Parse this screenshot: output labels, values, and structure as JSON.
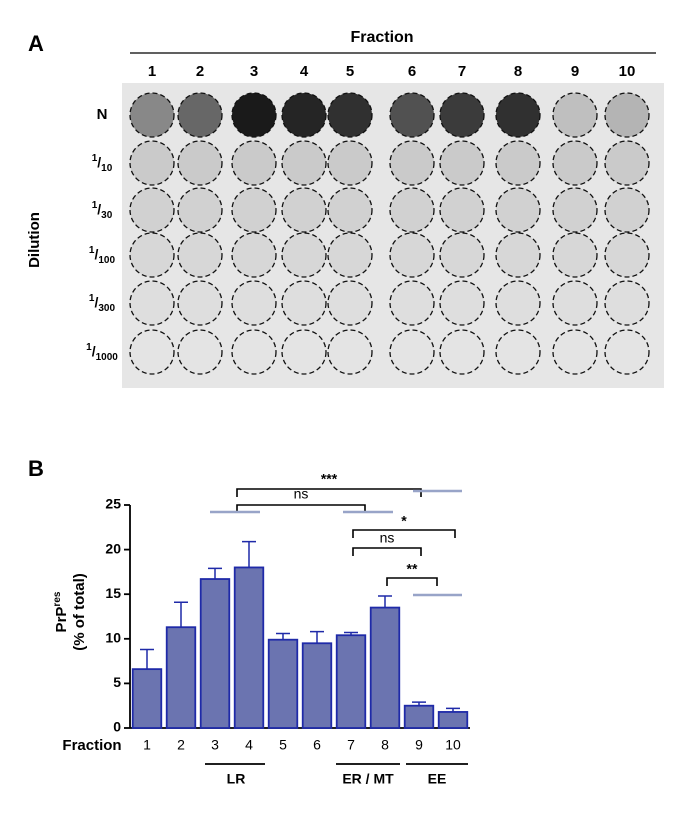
{
  "panel_a": {
    "label": "A",
    "title": "Fraction",
    "columns": [
      "1",
      "2",
      "3",
      "4",
      "5",
      "6",
      "7",
      "8",
      "9",
      "10"
    ],
    "row_axis": "Dilution",
    "slash": "/",
    "rows": [
      "N",
      {
        "sup": "1",
        "sub": "10"
      },
      {
        "sup": "1",
        "sub": "30"
      },
      {
        "sup": "1",
        "sub": "100"
      },
      {
        "sup": "1",
        "sub": "300"
      },
      {
        "sup": "1",
        "sub": "1000"
      }
    ]
  },
  "chart_data": {
    "type": "bar",
    "label": "B",
    "y_label": {
      "text": "PrP",
      "sup": "res",
      "line2": "(% of total)"
    },
    "x_label": "Fraction",
    "categories": [
      "1",
      "2",
      "3",
      "4",
      "5",
      "6",
      "7",
      "8",
      "9",
      "10"
    ],
    "values": [
      6.6,
      11.3,
      16.7,
      18.0,
      9.9,
      9.5,
      10.4,
      13.5,
      2.5,
      1.8
    ],
    "errors": [
      2.2,
      2.8,
      1.2,
      2.9,
      0.7,
      1.3,
      0.3,
      1.3,
      0.4,
      0.4
    ],
    "color": "#6b74b0",
    "edge_color": "#1f2aa8",
    "ylim": [
      0,
      25
    ],
    "yticks": [
      0,
      5,
      10,
      15,
      20,
      25
    ],
    "groups": [
      "LR",
      "ER / MT",
      "EE"
    ],
    "annotations": [
      "***",
      "ns",
      "*",
      "ns",
      "**"
    ]
  }
}
